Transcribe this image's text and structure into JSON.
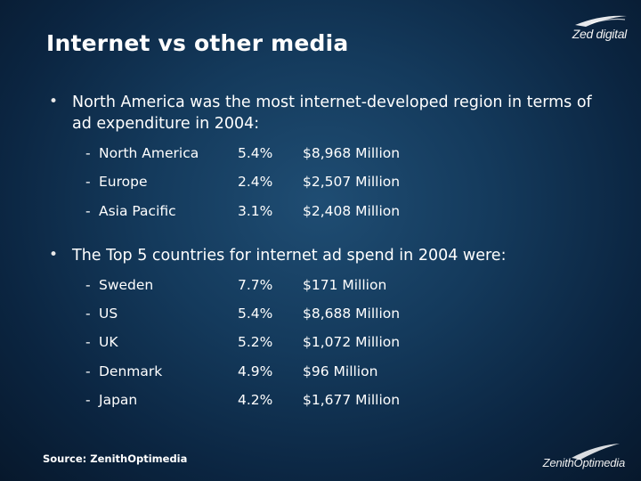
{
  "slide": {
    "title": "Internet vs other media",
    "logo_top": "Zed digital",
    "logo_bottom": "ZenithOptimedia",
    "source": "Source: ZenithOptimedia"
  },
  "bullets": [
    {
      "marker": "•",
      "text": "North America was the most internet-developed region in terms of ad expenditure in 2004:",
      "rows": [
        {
          "dash": "-",
          "name": "North America",
          "share": "5.4%",
          "amount": "$8,968 Million"
        },
        {
          "dash": "-",
          "name": "Europe",
          "share": "2.4%",
          "amount": "$2,507 Million"
        },
        {
          "dash": "-",
          "name": "Asia Pacific",
          "share": "3.1%",
          "amount": "$2,408 Million"
        }
      ]
    },
    {
      "marker": "•",
      "text": "The Top 5 countries for internet ad spend in 2004 were:",
      "rows": [
        {
          "dash": "-",
          "name": "Sweden",
          "share": "7.7%",
          "amount": "$171 Million"
        },
        {
          "dash": "-",
          "name": "US",
          "share": "5.4%",
          "amount": "$8,688 Million"
        },
        {
          "dash": "-",
          "name": "UK",
          "share": "5.2%",
          "amount": "$1,072 Million"
        },
        {
          "dash": "-",
          "name": "Denmark",
          "share": "4.9%",
          "amount": "$96 Million"
        },
        {
          "dash": "-",
          "name": "Japan",
          "share": "4.2%",
          "amount": "$1,677 Million"
        }
      ]
    }
  ]
}
